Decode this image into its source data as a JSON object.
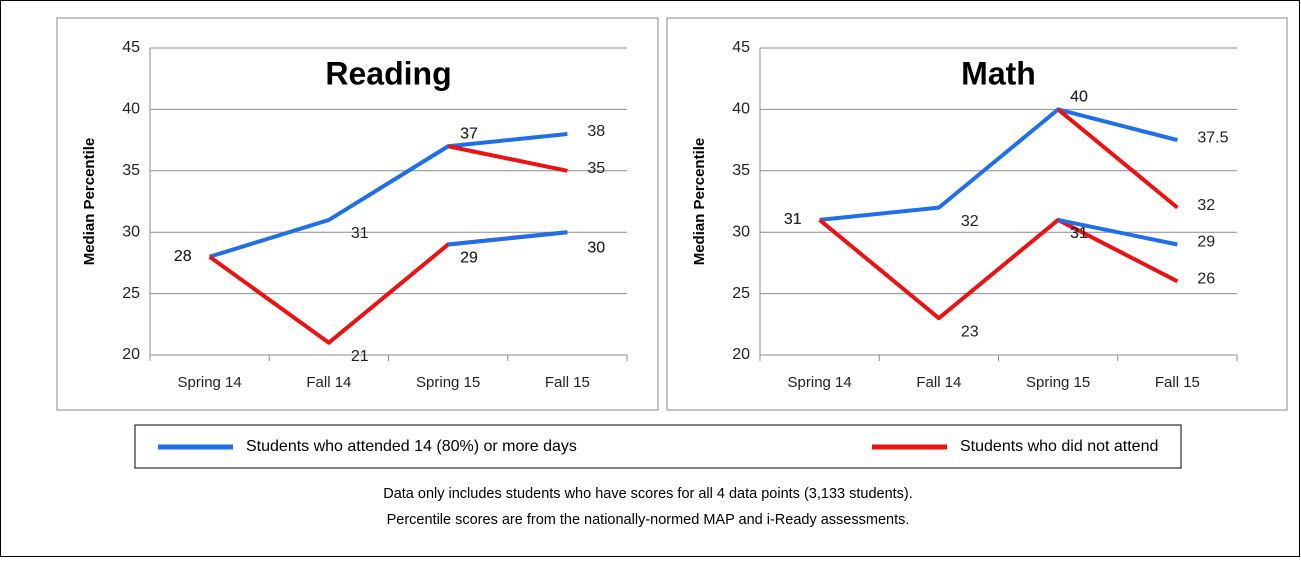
{
  "chart_data": [
    {
      "type": "line",
      "title": "Reading",
      "y_label": "Median Percentile",
      "categories": [
        "Spring 14",
        "Fall 14",
        "Spring 15",
        "Fall 15"
      ],
      "ylim": [
        20,
        45
      ],
      "yticks": [
        20,
        25,
        30,
        35,
        40,
        45
      ],
      "grid": true,
      "series": [
        {
          "color": "#1f6fe8",
          "values": [
            28,
            31,
            37,
            38
          ]
        },
        {
          "color": "#ee1111",
          "values": [
            null,
            null,
            37,
            35
          ]
        },
        {
          "color": "#ee1111",
          "values": [
            28,
            21,
            29,
            30
          ]
        },
        {
          "color": "#1f6fe8",
          "values": [
            null,
            null,
            29,
            30
          ]
        }
      ]
    },
    {
      "type": "line",
      "title": "Math",
      "y_label": "Median Percentile",
      "categories": [
        "Spring 14",
        "Fall 14",
        "Spring 15",
        "Fall 15"
      ],
      "ylim": [
        20,
        45
      ],
      "yticks": [
        20,
        25,
        30,
        35,
        40,
        45
      ],
      "grid": true,
      "series": [
        {
          "color": "#1f6fe8",
          "values": [
            31,
            32,
            40,
            37.5
          ]
        },
        {
          "color": "#ee1111",
          "values": [
            null,
            null,
            40,
            32
          ]
        },
        {
          "color": "#ee1111",
          "values": [
            31,
            23,
            31,
            26
          ]
        },
        {
          "color": "#1f6fe8",
          "values": [
            null,
            null,
            31,
            29
          ]
        }
      ]
    }
  ],
  "legend": [
    {
      "name": "Students who attended 14 (80%) or more days",
      "color": "#1f6fe8"
    },
    {
      "name": "Students who did not attend",
      "color": "#ee1111"
    }
  ],
  "notes": [
    "Data only includes students who have scores for all 4 data points (3,133 students).",
    "Percentile scores are from the nationally-normed MAP and i-Ready assessments."
  ]
}
